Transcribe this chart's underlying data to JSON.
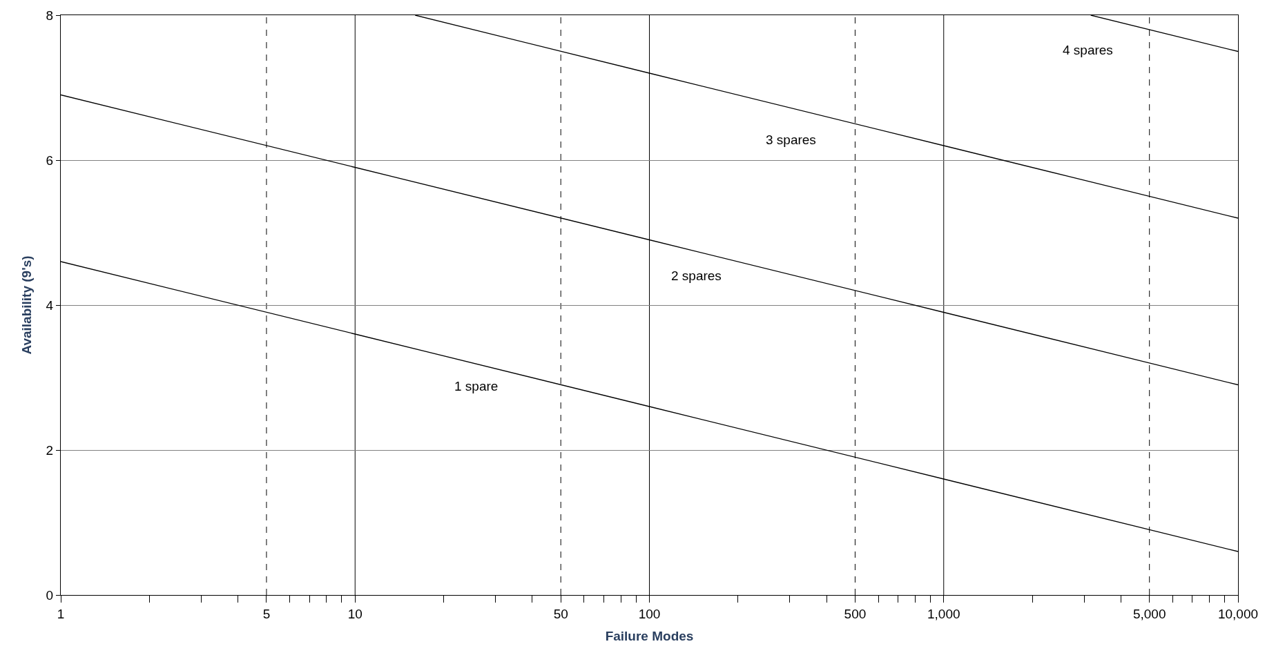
{
  "chart_data": {
    "type": "line",
    "xlabel": "Failure Modes",
    "ylabel": "Availability (9's)",
    "log": "x",
    "xlim": [
      1,
      10000
    ],
    "ylim": [
      0,
      8
    ],
    "yticks": [
      0,
      2,
      4,
      6,
      8
    ],
    "xticks": [
      1,
      {
        "value": 2,
        "label": null
      },
      {
        "value": 3,
        "label": null
      },
      {
        "value": 4,
        "label": null
      },
      5,
      {
        "value": 6,
        "label": null
      },
      {
        "value": 7,
        "label": null
      },
      {
        "value": 8,
        "label": null
      },
      {
        "value": 9,
        "label": null
      },
      10,
      {
        "value": 20,
        "label": null
      },
      {
        "value": 30,
        "label": null
      },
      {
        "value": 40,
        "label": null
      },
      50,
      {
        "value": 60,
        "label": null
      },
      {
        "value": 70,
        "label": null
      },
      {
        "value": 80,
        "label": null
      },
      {
        "value": 90,
        "label": null
      },
      100,
      {
        "value": 200,
        "label": null
      },
      {
        "value": 300,
        "label": null
      },
      {
        "value": 400,
        "label": null
      },
      500,
      {
        "value": 600,
        "label": null
      },
      {
        "value": 700,
        "label": null
      },
      {
        "value": 800,
        "label": null
      },
      {
        "value": 900,
        "label": null
      },
      {
        "value": 1000,
        "label": "1,000"
      },
      {
        "value": 2000,
        "label": null
      },
      {
        "value": 3000,
        "label": null
      },
      {
        "value": 4000,
        "label": null
      },
      {
        "value": 5000,
        "label": "5,000"
      },
      {
        "value": 6000,
        "label": null
      },
      {
        "value": 7000,
        "label": null
      },
      {
        "value": 8000,
        "label": null
      },
      {
        "value": 9000,
        "label": null
      },
      {
        "value": 10000,
        "label": "10,000"
      }
    ],
    "grid": "y",
    "marker": "none",
    "line_style": "solid",
    "series": [
      {
        "color": "#000000",
        "x": [
          1,
          10,
          100,
          1000,
          10000
        ],
        "values": [
          4.6,
          3.6,
          2.6,
          1.6,
          0.6
        ]
      },
      {
        "color": "#000000",
        "x": [
          1,
          10,
          100,
          1000,
          10000
        ],
        "values": [
          6.9,
          5.9,
          4.9,
          3.9,
          2.9
        ]
      },
      {
        "color": "#000000",
        "x": [
          16,
          100,
          1000,
          10000
        ],
        "values": [
          8,
          7.2,
          6.2,
          5.2
        ]
      },
      {
        "color": "#000000",
        "x": [
          3160,
          10000
        ],
        "values": [
          8,
          7.5
        ]
      }
    ],
    "ref_lines": [
      {
        "axis": "x",
        "value": 5,
        "line_style": "dashed",
        "color": "#000000"
      },
      {
        "axis": "x",
        "value": 10,
        "line_style": "solid",
        "color": "#000000"
      },
      {
        "axis": "x",
        "value": 50,
        "line_style": "dashed",
        "color": "#000000"
      },
      {
        "axis": "x",
        "value": 100,
        "line_style": "solid",
        "color": "#000000"
      },
      {
        "axis": "x",
        "value": 500,
        "line_style": "dashed",
        "color": "#000000"
      },
      {
        "axis": "x",
        "value": 1000,
        "line_style": "solid",
        "color": "#000000"
      },
      {
        "axis": "x",
        "value": 5000,
        "line_style": "dashed",
        "color": "#000000"
      }
    ],
    "annotations": [
      "1 spare",
      "2 spares",
      "3 spares",
      "4 spares"
    ]
  }
}
